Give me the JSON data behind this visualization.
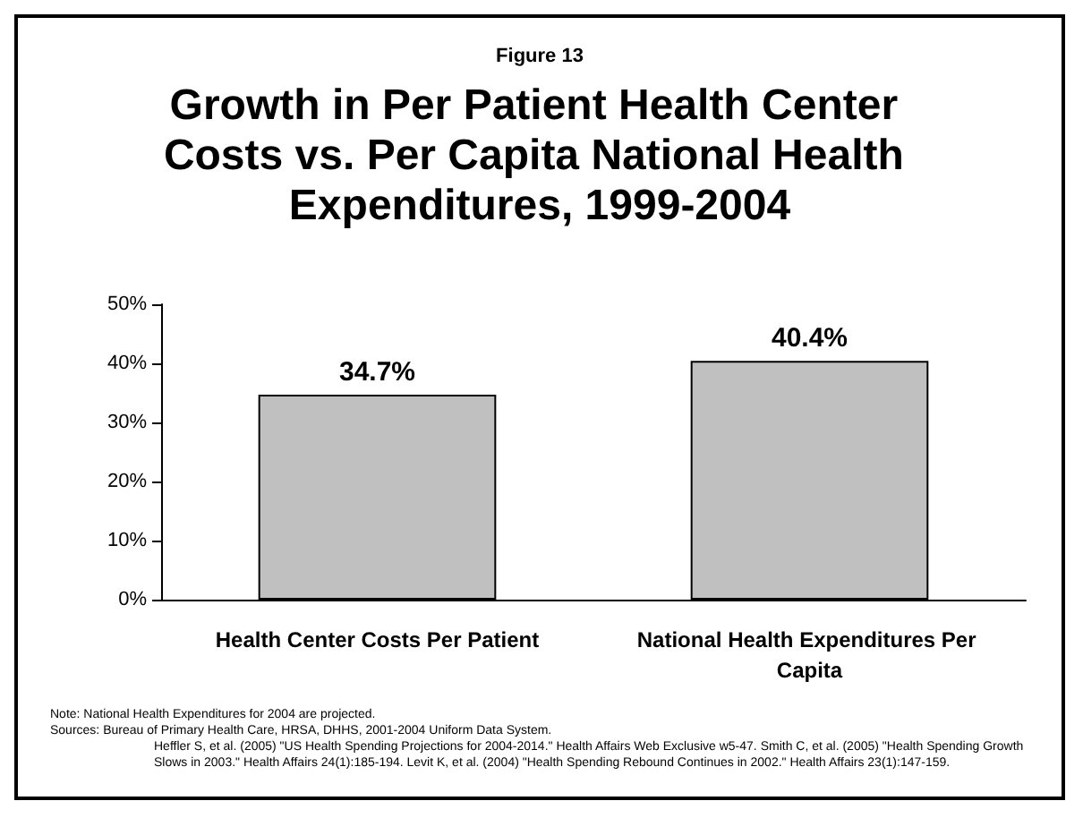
{
  "chart_data": {
    "type": "bar",
    "subtitle": "Figure 13",
    "title": "Growth in Per Patient Health Center Costs vs. Per Capita National Health Expenditures, 1999-2004",
    "categories": [
      "Health Center Costs Per Patient",
      "National Health Expenditures Per Capita"
    ],
    "values": [
      34.7,
      40.4
    ],
    "color": "#c0c0c0",
    "value_labels": [
      "34.7%",
      "40.4%"
    ],
    "ylim": [
      0,
      50
    ],
    "yticks": [
      {
        "value": 0,
        "label": "0%"
      },
      {
        "value": 10,
        "label": "10%"
      },
      {
        "value": 20,
        "label": "20%"
      },
      {
        "value": 30,
        "label": "30%"
      },
      {
        "value": 40,
        "label": "40%"
      },
      {
        "value": 50,
        "label": "50%"
      }
    ],
    "grid": false,
    "annotations": [
      "Note:  National Health Expenditures for 2004 are projected.",
      "Sources:  Bureau of Primary Health Care, HRSA, DHHS, 2001-2004 Uniform Data System.",
      "Heffler S, et al. (2005) \"US Health Spending Projections for 2004-2014.\"  Health Affairs Web Exclusive w5-47.  Smith C, et al. (2005) \"Health Spending Growth Slows in 2003.\" Health Affairs 24(1):185-194. Levit K, et al. (2004) \"Health Spending Rebound Continues in 2002.\" Health Affairs 23(1):147-159."
    ]
  }
}
